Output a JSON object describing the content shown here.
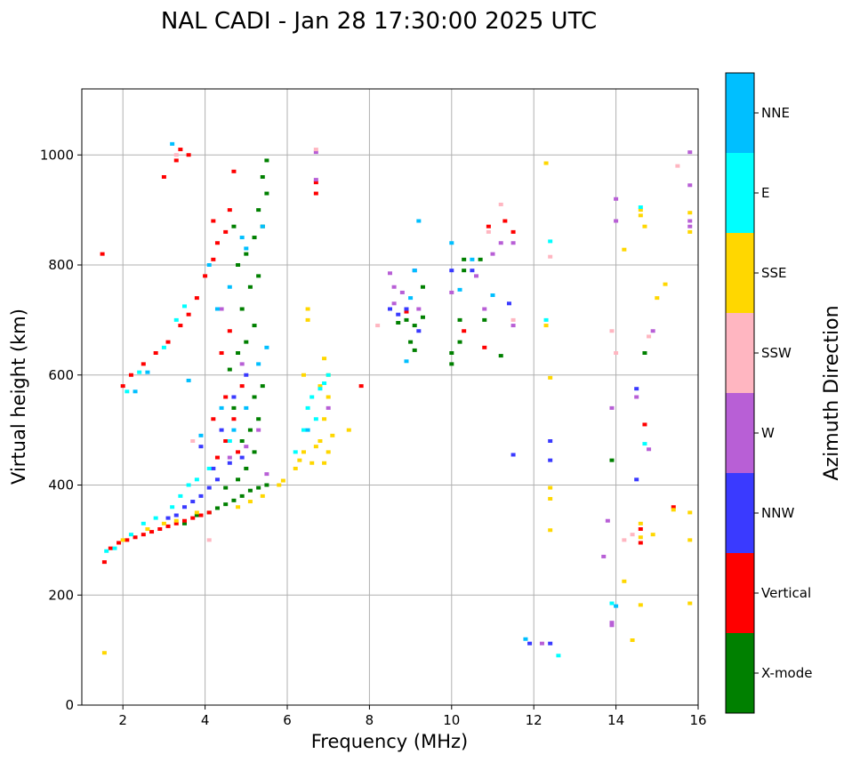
{
  "chart_data": {
    "type": "scatter",
    "title": "NAL CADI - Jan 28 17:30:00 2025 UTC",
    "xlabel": "Frequency (MHz)",
    "ylabel": "Virtual height (km)",
    "xlim": [
      1,
      16
    ],
    "ylim": [
      0,
      1120
    ],
    "xticks": [
      2,
      4,
      6,
      8,
      10,
      12,
      14,
      16
    ],
    "yticks": [
      0,
      200,
      400,
      600,
      800,
      1000
    ],
    "grid": true,
    "colorbar": {
      "title": "Azimuth Direction",
      "categories": [
        "X-mode",
        "Vertical",
        "NNW",
        "W",
        "SSW",
        "SSE",
        "E",
        "NNE"
      ],
      "colors": [
        "#008000",
        "#ff0000",
        "#3a3aff",
        "#b85fd6",
        "#ffb6c1",
        "#ffd700",
        "#00ffff",
        "#00bfff"
      ]
    },
    "series": [
      {
        "name": "X-mode",
        "points": [
          [
            3.5,
            330
          ],
          [
            3.8,
            345
          ],
          [
            4.1,
            350
          ],
          [
            4.3,
            358
          ],
          [
            4.5,
            365
          ],
          [
            4.7,
            372
          ],
          [
            4.9,
            380
          ],
          [
            5.1,
            390
          ],
          [
            5.3,
            395
          ],
          [
            5.5,
            400
          ],
          [
            4.5,
            395
          ],
          [
            4.8,
            410
          ],
          [
            5.0,
            430
          ],
          [
            5.2,
            460
          ],
          [
            4.9,
            480
          ],
          [
            5.1,
            500
          ],
          [
            5.3,
            520
          ],
          [
            4.7,
            540
          ],
          [
            5.2,
            560
          ],
          [
            5.4,
            580
          ],
          [
            4.6,
            610
          ],
          [
            4.8,
            640
          ],
          [
            5.0,
            660
          ],
          [
            5.2,
            690
          ],
          [
            4.9,
            720
          ],
          [
            5.1,
            760
          ],
          [
            5.3,
            780
          ],
          [
            4.8,
            800
          ],
          [
            5.0,
            820
          ],
          [
            5.2,
            850
          ],
          [
            5.4,
            870
          ],
          [
            5.3,
            900
          ],
          [
            5.5,
            930
          ],
          [
            5.4,
            960
          ],
          [
            5.5,
            990
          ],
          [
            4.7,
            870
          ],
          [
            8.7,
            695
          ],
          [
            8.9,
            700
          ],
          [
            9.1,
            690
          ],
          [
            9.0,
            660
          ],
          [
            9.1,
            645
          ],
          [
            9.3,
            705
          ],
          [
            9.3,
            760
          ],
          [
            10.0,
            640
          ],
          [
            10.0,
            620
          ],
          [
            10.2,
            660
          ],
          [
            10.2,
            700
          ],
          [
            10.3,
            790
          ],
          [
            10.3,
            810
          ],
          [
            10.8,
            700
          ],
          [
            10.7,
            810
          ],
          [
            11.2,
            635
          ],
          [
            13.9,
            445
          ],
          [
            14.7,
            640
          ]
        ]
      },
      {
        "name": "Vertical",
        "points": [
          [
            1.5,
            820
          ],
          [
            1.55,
            260
          ],
          [
            1.7,
            285
          ],
          [
            1.9,
            295
          ],
          [
            2.1,
            300
          ],
          [
            2.3,
            305
          ],
          [
            2.5,
            310
          ],
          [
            2.7,
            315
          ],
          [
            2.9,
            320
          ],
          [
            3.1,
            325
          ],
          [
            3.3,
            330
          ],
          [
            3.5,
            335
          ],
          [
            3.7,
            340
          ],
          [
            3.9,
            345
          ],
          [
            4.1,
            350
          ],
          [
            2.0,
            580
          ],
          [
            2.2,
            600
          ],
          [
            2.5,
            620
          ],
          [
            2.8,
            640
          ],
          [
            3.1,
            660
          ],
          [
            3.4,
            690
          ],
          [
            3.6,
            710
          ],
          [
            3.8,
            740
          ],
          [
            4.0,
            780
          ],
          [
            4.2,
            810
          ],
          [
            4.3,
            840
          ],
          [
            4.5,
            860
          ],
          [
            4.2,
            880
          ],
          [
            4.6,
            900
          ],
          [
            3.0,
            960
          ],
          [
            3.3,
            990
          ],
          [
            3.6,
            1000
          ],
          [
            3.4,
            1010
          ],
          [
            4.7,
            970
          ],
          [
            4.3,
            450
          ],
          [
            4.5,
            480
          ],
          [
            4.7,
            520
          ],
          [
            4.5,
            560
          ],
          [
            4.9,
            580
          ],
          [
            4.4,
            640
          ],
          [
            4.6,
            680
          ],
          [
            4.2,
            520
          ],
          [
            4.8,
            460
          ],
          [
            6.7,
            930
          ],
          [
            6.7,
            950
          ],
          [
            7.8,
            580
          ],
          [
            8.9,
            715
          ],
          [
            10.3,
            680
          ],
          [
            10.8,
            650
          ],
          [
            11.3,
            880
          ],
          [
            11.5,
            860
          ],
          [
            10.9,
            870
          ],
          [
            14.6,
            320
          ],
          [
            14.6,
            295
          ],
          [
            14.7,
            510
          ],
          [
            15.4,
            360
          ]
        ]
      },
      {
        "name": "NNW",
        "points": [
          [
            3.5,
            360
          ],
          [
            3.7,
            370
          ],
          [
            3.9,
            380
          ],
          [
            4.1,
            395
          ],
          [
            4.3,
            410
          ],
          [
            4.2,
            430
          ],
          [
            4.6,
            440
          ],
          [
            4.9,
            450
          ],
          [
            3.3,
            345
          ],
          [
            3.1,
            340
          ],
          [
            3.9,
            470
          ],
          [
            4.4,
            500
          ],
          [
            4.7,
            560
          ],
          [
            5.0,
            600
          ],
          [
            8.5,
            720
          ],
          [
            8.7,
            710
          ],
          [
            8.9,
            720
          ],
          [
            9.2,
            680
          ],
          [
            9.1,
            790
          ],
          [
            10.0,
            790
          ],
          [
            10.5,
            790
          ],
          [
            11.4,
            730
          ],
          [
            11.5,
            455
          ],
          [
            11.9,
            112
          ],
          [
            12.4,
            112
          ],
          [
            12.4,
            480
          ],
          [
            12.4,
            445
          ],
          [
            14.5,
            410
          ],
          [
            14.5,
            575
          ]
        ]
      },
      {
        "name": "W",
        "points": [
          [
            4.6,
            450
          ],
          [
            5.0,
            470
          ],
          [
            5.3,
            500
          ],
          [
            5.5,
            420
          ],
          [
            4.9,
            620
          ],
          [
            4.4,
            720
          ],
          [
            6.7,
            1005
          ],
          [
            6.7,
            955
          ],
          [
            7.0,
            540
          ],
          [
            8.5,
            785
          ],
          [
            8.6,
            760
          ],
          [
            8.6,
            730
          ],
          [
            8.8,
            750
          ],
          [
            9.2,
            720
          ],
          [
            10.0,
            750
          ],
          [
            10.6,
            780
          ],
          [
            10.8,
            720
          ],
          [
            11.0,
            820
          ],
          [
            11.2,
            840
          ],
          [
            11.5,
            840
          ],
          [
            11.5,
            690
          ],
          [
            12.2,
            112
          ],
          [
            13.7,
            270
          ],
          [
            13.9,
            145
          ],
          [
            13.9,
            150
          ],
          [
            13.9,
            540
          ],
          [
            14.0,
            880
          ],
          [
            14.0,
            920
          ],
          [
            14.5,
            560
          ],
          [
            14.8,
            465
          ],
          [
            14.9,
            680
          ],
          [
            15.8,
            1005
          ],
          [
            15.8,
            945
          ],
          [
            15.8,
            870
          ],
          [
            15.8,
            880
          ],
          [
            13.8,
            335
          ]
        ]
      },
      {
        "name": "SSW",
        "points": [
          [
            6.7,
            1010
          ],
          [
            3.3,
            1000
          ],
          [
            4.1,
            300
          ],
          [
            3.7,
            480
          ],
          [
            8.2,
            690
          ],
          [
            10.9,
            860
          ],
          [
            11.2,
            910
          ],
          [
            11.5,
            700
          ],
          [
            12.4,
            815
          ],
          [
            14.2,
            300
          ],
          [
            14.4,
            310
          ],
          [
            14.8,
            670
          ],
          [
            15.5,
            980
          ],
          [
            13.9,
            680
          ],
          [
            14.0,
            640
          ]
        ]
      },
      {
        "name": "SSE",
        "points": [
          [
            1.55,
            95
          ],
          [
            2.0,
            300
          ],
          [
            2.6,
            320
          ],
          [
            3.0,
            330
          ],
          [
            3.3,
            335
          ],
          [
            3.8,
            350
          ],
          [
            4.8,
            360
          ],
          [
            5.1,
            370
          ],
          [
            5.4,
            380
          ],
          [
            5.8,
            400
          ],
          [
            5.9,
            408
          ],
          [
            6.2,
            430
          ],
          [
            6.3,
            445
          ],
          [
            6.4,
            460
          ],
          [
            6.6,
            440
          ],
          [
            6.7,
            470
          ],
          [
            6.8,
            480
          ],
          [
            6.9,
            440
          ],
          [
            7.0,
            460
          ],
          [
            7.1,
            490
          ],
          [
            6.9,
            520
          ],
          [
            7.0,
            560
          ],
          [
            7.0,
            600
          ],
          [
            6.8,
            580
          ],
          [
            6.4,
            600
          ],
          [
            6.5,
            700
          ],
          [
            6.5,
            720
          ],
          [
            6.9,
            630
          ],
          [
            7.5,
            500
          ],
          [
            12.3,
            985
          ],
          [
            12.4,
            395
          ],
          [
            12.4,
            375
          ],
          [
            12.4,
            318
          ],
          [
            12.4,
            595
          ],
          [
            12.3,
            690
          ],
          [
            14.2,
            828
          ],
          [
            14.6,
            890
          ],
          [
            14.6,
            900
          ],
          [
            14.7,
            870
          ],
          [
            15.0,
            740
          ],
          [
            15.2,
            765
          ],
          [
            15.4,
            355
          ],
          [
            15.8,
            895
          ],
          [
            15.8,
            860
          ],
          [
            15.8,
            350
          ],
          [
            15.8,
            300
          ],
          [
            15.8,
            185
          ],
          [
            14.2,
            225
          ],
          [
            14.4,
            118
          ],
          [
            14.6,
            305
          ],
          [
            14.6,
            330
          ],
          [
            14.6,
            182
          ],
          [
            14.9,
            310
          ]
        ]
      },
      {
        "name": "E",
        "points": [
          [
            1.6,
            280
          ],
          [
            1.8,
            285
          ],
          [
            2.2,
            310
          ],
          [
            2.5,
            330
          ],
          [
            2.8,
            340
          ],
          [
            3.2,
            360
          ],
          [
            3.4,
            380
          ],
          [
            3.6,
            400
          ],
          [
            2.1,
            570
          ],
          [
            2.4,
            605
          ],
          [
            3.0,
            650
          ],
          [
            3.3,
            700
          ],
          [
            3.5,
            725
          ],
          [
            3.8,
            410
          ],
          [
            4.1,
            430
          ],
          [
            4.6,
            480
          ],
          [
            6.2,
            460
          ],
          [
            6.4,
            500
          ],
          [
            6.5,
            540
          ],
          [
            6.6,
            560
          ],
          [
            6.7,
            520
          ],
          [
            6.8,
            575
          ],
          [
            7.0,
            600
          ],
          [
            6.9,
            585
          ],
          [
            12.4,
            843
          ],
          [
            12.3,
            700
          ],
          [
            12.6,
            90
          ],
          [
            14.6,
            905
          ],
          [
            14.7,
            475
          ],
          [
            13.9,
            185
          ]
        ]
      },
      {
        "name": "NNE",
        "points": [
          [
            2.3,
            570
          ],
          [
            2.6,
            605
          ],
          [
            3.2,
            1020
          ],
          [
            3.6,
            590
          ],
          [
            3.9,
            490
          ],
          [
            4.4,
            540
          ],
          [
            4.7,
            500
          ],
          [
            5.0,
            540
          ],
          [
            5.3,
            620
          ],
          [
            5.5,
            650
          ],
          [
            4.3,
            720
          ],
          [
            4.6,
            760
          ],
          [
            4.1,
            800
          ],
          [
            5.0,
            830
          ],
          [
            5.4,
            870
          ],
          [
            4.9,
            850
          ],
          [
            6.5,
            500
          ],
          [
            9.2,
            880
          ],
          [
            9.1,
            790
          ],
          [
            9.0,
            740
          ],
          [
            8.9,
            625
          ],
          [
            10.0,
            840
          ],
          [
            10.2,
            755
          ],
          [
            10.5,
            810
          ],
          [
            11.0,
            745
          ],
          [
            11.8,
            120
          ],
          [
            14.0,
            180
          ]
        ]
      }
    ]
  }
}
